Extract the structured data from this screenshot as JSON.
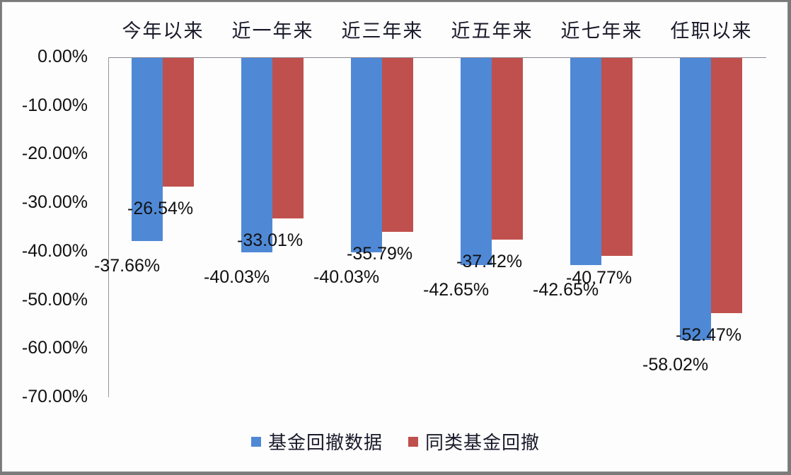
{
  "chart_data": {
    "type": "bar",
    "title": "",
    "xlabel": "",
    "ylabel": "",
    "categories": [
      "今年以来",
      "近一年来",
      "近三年来",
      "近五年来",
      "近七年来",
      "任职以来"
    ],
    "series": [
      {
        "name": "基金回撤数据",
        "color": "#4f89d6",
        "values": [
          -37.66,
          -40.03,
          -40.03,
          -42.65,
          -42.65,
          -58.02
        ],
        "labels": [
          "-37.66%",
          "-40.03%",
          "-40.03%",
          "-42.65%",
          "-42.65%",
          "-58.02%"
        ]
      },
      {
        "name": "同类基金回撤",
        "color": "#c0504d",
        "values": [
          -26.54,
          -33.01,
          -35.79,
          -37.42,
          -40.77,
          -52.47
        ],
        "labels": [
          "-26.54%",
          "-33.01%",
          "-35.79%",
          "-37.42%",
          "-40.77%",
          "-52.47%"
        ]
      }
    ],
    "yticks": [
      "0.00%",
      "-10.00%",
      "-20.00%",
      "-30.00%",
      "-40.00%",
      "-50.00%",
      "-60.00%",
      "-70.00%"
    ],
    "ylim": [
      -70,
      0
    ],
    "grid": false,
    "legend_position": "bottom",
    "category_axis_position": "top"
  },
  "legend": {
    "items": [
      {
        "label": "基金回撤数据",
        "color": "#4f89d6"
      },
      {
        "label": "同类基金回撤",
        "color": "#c0504d"
      }
    ]
  }
}
